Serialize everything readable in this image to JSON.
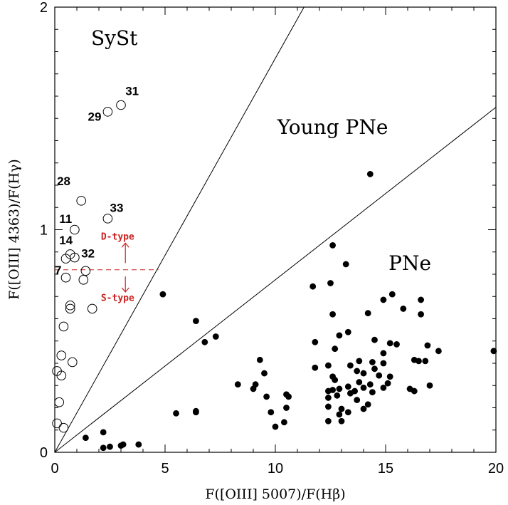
{
  "colors": {
    "annotation": "#cc2222",
    "ink": "#000000",
    "background": "#ffffff"
  },
  "chart_data": {
    "type": "scatter",
    "title": "",
    "xlabel": "F([OIII] 5007)/F(Hβ)",
    "ylabel": "F([OIII] 4363)/F(Hγ)",
    "xlim": [
      0,
      20
    ],
    "ylim": [
      0,
      2
    ],
    "x_ticks": [
      0,
      5,
      10,
      15,
      20
    ],
    "x_tick_labels": [
      "0",
      "5",
      "10",
      "15",
      "20"
    ],
    "y_ticks": [
      0,
      1,
      2
    ],
    "y_tick_labels": [
      "0",
      "1",
      "2"
    ],
    "dividing_lines": [
      {
        "name": "SySt / Young PNe boundary",
        "slope": 0.177
      },
      {
        "name": "Young PNe / PNe boundary",
        "slope": 0.0775
      }
    ],
    "region_labels": [
      {
        "text": "SySt",
        "x": 2.7,
        "y": 1.83
      },
      {
        "text": "Young PNe",
        "x": 12.6,
        "y": 1.43
      },
      {
        "text": "PNe",
        "x": 16.1,
        "y": 0.82
      }
    ],
    "annotation": {
      "threshold_y": 0.82,
      "x_range": [
        0,
        4.7
      ],
      "upper_label": "D-type",
      "lower_label": "S-type",
      "upper_label_pos": {
        "x": 2.85,
        "y": 0.955
      },
      "lower_label_pos": {
        "x": 2.85,
        "y": 0.68
      },
      "arrow_x": 3.2,
      "arrow_up": [
        0.85,
        0.94
      ],
      "arrow_down": [
        0.79,
        0.72
      ]
    },
    "series": [
      {
        "name": "Symbiotic stars (open circles)",
        "marker": "open-circle",
        "points": [
          [
            2.4,
            1.53
          ],
          [
            3.0,
            1.56
          ],
          [
            1.2,
            1.13
          ],
          [
            2.4,
            1.05
          ],
          [
            0.9,
            1.0
          ],
          [
            0.7,
            0.89
          ],
          [
            0.5,
            0.87
          ],
          [
            0.9,
            0.875
          ],
          [
            1.4,
            0.815
          ],
          [
            1.3,
            0.775
          ],
          [
            0.5,
            0.785
          ],
          [
            0.7,
            0.66
          ],
          [
            0.7,
            0.645
          ],
          [
            1.7,
            0.645
          ],
          [
            0.4,
            0.565
          ],
          [
            0.3,
            0.435
          ],
          [
            0.8,
            0.405
          ],
          [
            0.1,
            0.365
          ],
          [
            0.3,
            0.345
          ],
          [
            0.2,
            0.225
          ],
          [
            0.1,
            0.13
          ],
          [
            0.4,
            0.11
          ]
        ]
      },
      {
        "name": "Planetary nebulae (filled circles)",
        "marker": "filled-circle",
        "points": [
          [
            14.3,
            1.25
          ],
          [
            4.9,
            0.71
          ],
          [
            12.6,
            0.93
          ],
          [
            13.2,
            0.845
          ],
          [
            11.7,
            0.745
          ],
          [
            12.5,
            0.76
          ],
          [
            12.6,
            0.62
          ],
          [
            14.2,
            0.625
          ],
          [
            15.8,
            0.645
          ],
          [
            15.3,
            0.71
          ],
          [
            14.9,
            0.685
          ],
          [
            16.6,
            0.685
          ],
          [
            16.6,
            0.62
          ],
          [
            6.4,
            0.59
          ],
          [
            7.3,
            0.52
          ],
          [
            6.8,
            0.495
          ],
          [
            12.9,
            0.525
          ],
          [
            13.3,
            0.54
          ],
          [
            11.8,
            0.495
          ],
          [
            12.7,
            0.465
          ],
          [
            14.5,
            0.505
          ],
          [
            15.2,
            0.49
          ],
          [
            15.5,
            0.485
          ],
          [
            16.9,
            0.48
          ],
          [
            17.4,
            0.455
          ],
          [
            19.9,
            0.455
          ],
          [
            14.9,
            0.445
          ],
          [
            13.8,
            0.41
          ],
          [
            14.4,
            0.405
          ],
          [
            14.9,
            0.4
          ],
          [
            16.3,
            0.415
          ],
          [
            16.5,
            0.41
          ],
          [
            16.8,
            0.41
          ],
          [
            11.8,
            0.38
          ],
          [
            12.4,
            0.39
          ],
          [
            13.4,
            0.39
          ],
          [
            14.5,
            0.375
          ],
          [
            13.7,
            0.365
          ],
          [
            14.0,
            0.355
          ],
          [
            14.7,
            0.345
          ],
          [
            15.2,
            0.34
          ],
          [
            12.6,
            0.34
          ],
          [
            12.7,
            0.325
          ],
          [
            13.8,
            0.315
          ],
          [
            14.3,
            0.305
          ],
          [
            15.1,
            0.31
          ],
          [
            13.3,
            0.295
          ],
          [
            14.0,
            0.29
          ],
          [
            14.9,
            0.29
          ],
          [
            16.1,
            0.285
          ],
          [
            16.3,
            0.275
          ],
          [
            17.0,
            0.3
          ],
          [
            12.4,
            0.275
          ],
          [
            12.6,
            0.28
          ],
          [
            12.9,
            0.285
          ],
          [
            13.6,
            0.275
          ],
          [
            13.4,
            0.265
          ],
          [
            14.4,
            0.27
          ],
          [
            12.4,
            0.245
          ],
          [
            12.8,
            0.255
          ],
          [
            13.7,
            0.235
          ],
          [
            14.2,
            0.215
          ],
          [
            12.4,
            0.205
          ],
          [
            13.0,
            0.195
          ],
          [
            14.0,
            0.195
          ],
          [
            12.9,
            0.17
          ],
          [
            13.3,
            0.18
          ],
          [
            12.4,
            0.14
          ],
          [
            13.0,
            0.14
          ],
          [
            9.3,
            0.415
          ],
          [
            9.5,
            0.355
          ],
          [
            9.1,
            0.305
          ],
          [
            8.3,
            0.305
          ],
          [
            9.0,
            0.285
          ],
          [
            9.6,
            0.25
          ],
          [
            10.5,
            0.26
          ],
          [
            10.6,
            0.25
          ],
          [
            10.5,
            0.2
          ],
          [
            9.8,
            0.18
          ],
          [
            10.4,
            0.135
          ],
          [
            10.0,
            0.115
          ],
          [
            6.4,
            0.185
          ],
          [
            6.4,
            0.18
          ],
          [
            5.5,
            0.175
          ],
          [
            1.4,
            0.065
          ],
          [
            2.2,
            0.09
          ],
          [
            2.2,
            0.02
          ],
          [
            2.5,
            0.025
          ],
          [
            3.0,
            0.03
          ],
          [
            3.1,
            0.035
          ],
          [
            3.8,
            0.035
          ]
        ]
      }
    ],
    "point_labels": [
      {
        "text": "31",
        "x": 3.2,
        "y": 1.605
      },
      {
        "text": "29",
        "x": 1.5,
        "y": 1.49
      },
      {
        "text": "28",
        "x": 0.1,
        "y": 1.2
      },
      {
        "text": "33",
        "x": 2.5,
        "y": 1.08
      },
      {
        "text": "11",
        "x": 0.2,
        "y": 1.03
      },
      {
        "text": "14",
        "x": 0.2,
        "y": 0.935
      },
      {
        "text": "32",
        "x": 1.2,
        "y": 0.875
      },
      {
        "text": "7",
        "x": 0.0,
        "y": 0.8
      }
    ]
  }
}
